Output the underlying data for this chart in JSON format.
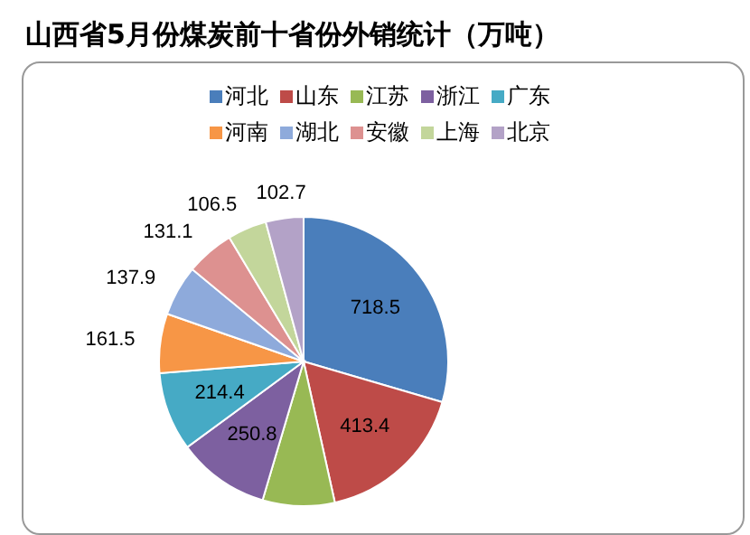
{
  "chart_data": {
    "type": "pie",
    "title": "山西省5月份煤炭前十省份外销统计（万吨）",
    "categories": [
      "河北",
      "山东",
      "江苏",
      "浙江",
      "广东",
      "河南",
      "湖北",
      "安徽",
      "上海",
      "北京"
    ],
    "values": [
      718.5,
      413.4,
      196,
      250.8,
      214.4,
      161.5,
      137.9,
      131.1,
      106.5,
      102.7
    ],
    "value_labels": [
      "718.5",
      "413.4",
      null,
      "250.8",
      "214.4",
      "161.5",
      "137.9",
      "131.1",
      "106.5",
      "102.7"
    ],
    "colors": [
      "#4a7ebb",
      "#be4b48",
      "#98b954",
      "#7d60a0",
      "#46aac5",
      "#f79646",
      "#8eaadb",
      "#dd9190",
      "#c3d69b",
      "#b3a2c7"
    ],
    "legend": "top"
  }
}
